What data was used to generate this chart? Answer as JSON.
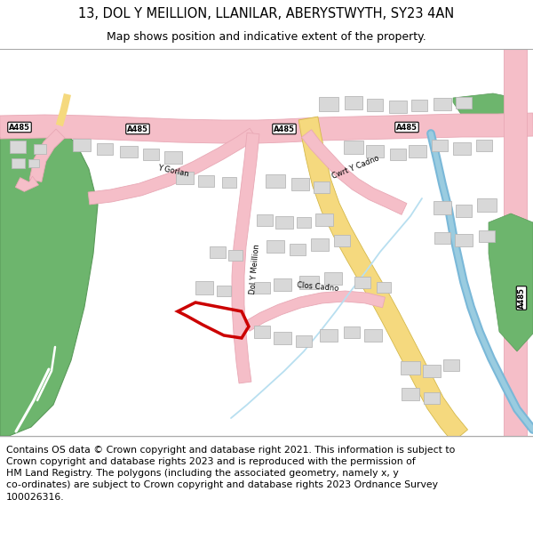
{
  "title_line1": "13, DOL Y MEILLION, LLANILAR, ABERYSTWYTH, SY23 4AN",
  "title_line2": "Map shows position and indicative extent of the property.",
  "footer": "Contains OS data © Crown copyright and database right 2021. This information is subject to\nCrown copyright and database rights 2023 and is reproduced with the permission of\nHM Land Registry. The polygons (including the associated geometry, namely x, y\nco-ordinates) are subject to Crown copyright and database rights 2023 Ordnance Survey\n100026316.",
  "road_pink": "#f5bec8",
  "road_pink_edge": "#e8a8b5",
  "road_yellow": "#f5d97e",
  "road_yellow_edge": "#d4b84a",
  "green": "#6db56d",
  "green_edge": "#5a9a5a",
  "blue_river": "#7ab8d8",
  "building_fill": "#d8d8d8",
  "building_edge": "#b8b8b8",
  "red_line": "#cc0000",
  "map_bg": "#ffffff",
  "header_bg": "#ffffff",
  "footer_bg": "#ffffff",
  "stream_color": "#b8dff0"
}
